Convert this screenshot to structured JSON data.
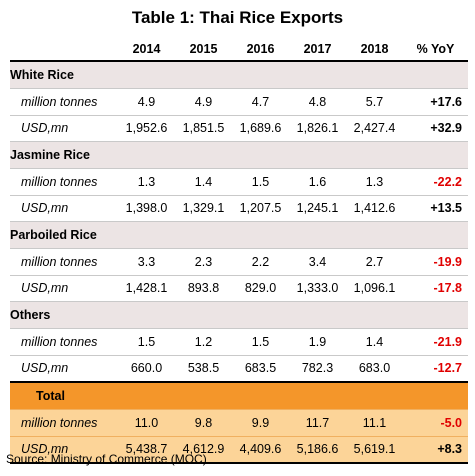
{
  "title": "Table 1: Thai Rice Exports",
  "columns": [
    "",
    "2014",
    "2015",
    "2016",
    "2017",
    "2018",
    "% YoY"
  ],
  "groups": [
    {
      "name": "White Rice",
      "rows": [
        {
          "label": "million tonnes",
          "values": [
            "4.9",
            "4.9",
            "4.7",
            "4.8",
            "5.7"
          ],
          "yoy": "+17.6"
        },
        {
          "label": "USD,mn",
          "values": [
            "1,952.6",
            "1,851.5",
            "1,689.6",
            "1,826.1",
            "2,427.4"
          ],
          "yoy": "+32.9"
        }
      ]
    },
    {
      "name": "Jasmine Rice",
      "rows": [
        {
          "label": "million tonnes",
          "values": [
            "1.3",
            "1.4",
            "1.5",
            "1.6",
            "1.3"
          ],
          "yoy": "-22.2"
        },
        {
          "label": "USD,mn",
          "values": [
            "1,398.0",
            "1,329.1",
            "1,207.5",
            "1,245.1",
            "1,412.6"
          ],
          "yoy": "+13.5"
        }
      ]
    },
    {
      "name": "Parboiled Rice",
      "rows": [
        {
          "label": "million tonnes",
          "values": [
            "3.3",
            "2.3",
            "2.2",
            "3.4",
            "2.7"
          ],
          "yoy": "-19.9"
        },
        {
          "label": "USD,mn",
          "values": [
            "1,428.1",
            "893.8",
            "829.0",
            "1,333.0",
            "1,096.1"
          ],
          "yoy": "-17.8"
        }
      ]
    },
    {
      "name": "Others",
      "rows": [
        {
          "label": "million tonnes",
          "values": [
            "1.5",
            "1.2",
            "1.5",
            "1.9",
            "1.4"
          ],
          "yoy": "-21.9"
        },
        {
          "label": "USD,mn",
          "values": [
            "660.0",
            "538.5",
            "683.5",
            "782.3",
            "683.0"
          ],
          "yoy": "-12.7"
        }
      ]
    },
    {
      "name": "Total",
      "rows": [
        {
          "label": "million tonnes",
          "values": [
            "11.0",
            "9.8",
            "9.9",
            "11.7",
            "11.1"
          ],
          "yoy": "-5.0"
        },
        {
          "label": "USD,mn",
          "values": [
            "5,438.7",
            "4,612.9",
            "4,409.6",
            "5,186.6",
            "5,619.1"
          ],
          "yoy": "+8.3"
        }
      ]
    }
  ],
  "colors": {
    "group_header_bg": "#ece4e4",
    "total_header_bg": "#f4962a",
    "total_row_bg": "#fcd498",
    "negative": "#e00000"
  },
  "source": "Source: Ministry of Commerce (MOC)"
}
